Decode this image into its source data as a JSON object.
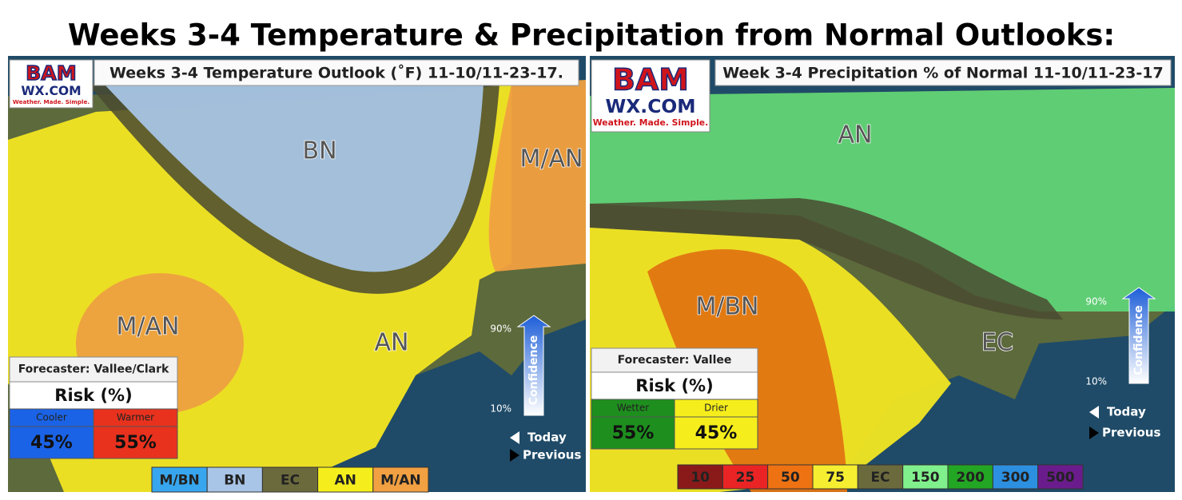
{
  "title": "Weeks 3-4 Temperature & Precipitation from Normal Outlooks:",
  "panels": [
    {
      "title": "Weeks 3-4 Temperature Outlook (˚F) 11-10/11-23-17.",
      "logo": {
        "brand": "BAM",
        "site": "WX.COM",
        "tagline": "Weather. Made. Simple."
      },
      "regions": [
        "BN",
        "M/AN",
        "M/AN",
        "AN"
      ],
      "forecaster": "Forecaster: Vallee/Clark",
      "risk_title": "Risk (%)",
      "risk": [
        {
          "label": "Cooler",
          "value": "45%",
          "color": "#1b63e6"
        },
        {
          "label": "Warmer",
          "value": "55%",
          "color": "#e8321e"
        }
      ],
      "confidence": {
        "label": "Confidence",
        "high": "90%",
        "low": "10%",
        "today": "Today",
        "previous": "Previous"
      },
      "legend": [
        {
          "label": "M/BN",
          "color": "#37a6ee"
        },
        {
          "label": "BN",
          "color": "#a8c4e6"
        },
        {
          "label": "EC",
          "color": "#6b6a3d"
        },
        {
          "label": "AN",
          "color": "#f6ee1c"
        },
        {
          "label": "M/AN",
          "color": "#f1a042"
        }
      ]
    },
    {
      "title": "Week 3-4 Precipitation % of Normal 11-10/11-23-17",
      "logo": {
        "brand": "BAM",
        "site": "WX.COM",
        "tagline": "Weather. Made. Simple."
      },
      "regions": [
        "AN",
        "M/BN",
        "EC"
      ],
      "forecaster": "Forecaster: Vallee",
      "risk_title": "Risk (%)",
      "risk": [
        {
          "label": "Wetter",
          "value": "55%",
          "color": "#1e8e1e"
        },
        {
          "label": "Drier",
          "value": "45%",
          "color": "#f6ee1c"
        }
      ],
      "confidence": {
        "label": "Confidence",
        "high": "90%",
        "low": "10%",
        "today": "Today",
        "previous": "Previous"
      },
      "legend": [
        {
          "label": "10",
          "color": "#8a1a1a"
        },
        {
          "label": "25",
          "color": "#ea2424"
        },
        {
          "label": "50",
          "color": "#ef7212"
        },
        {
          "label": "75",
          "color": "#f6ee30"
        },
        {
          "label": "EC",
          "color": "#6b6a3d"
        },
        {
          "label": "150",
          "color": "#80f08c"
        },
        {
          "label": "200",
          "color": "#23a623"
        },
        {
          "label": "300",
          "color": "#2c8fe0"
        },
        {
          "label": "500",
          "color": "#6b1c8c"
        }
      ]
    }
  ]
}
